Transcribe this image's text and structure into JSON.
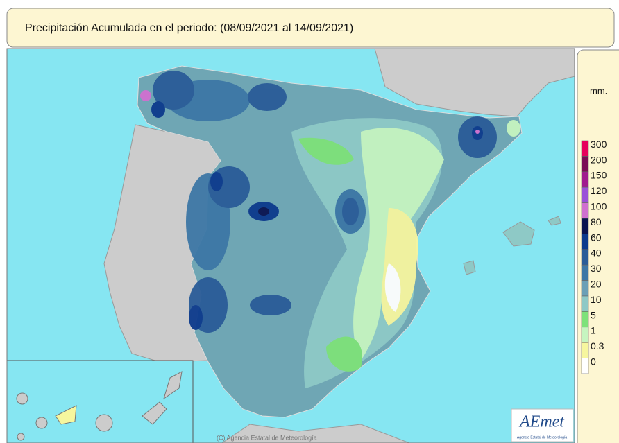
{
  "header": {
    "title": "Precipitación Acumulada en el periodo:  (08/09/2021 al 14/09/2021)"
  },
  "legend": {
    "unit": "mm.",
    "items": [
      {
        "label": "300",
        "color": "#e6005c"
      },
      {
        "label": "200",
        "color": "#7a0a55"
      },
      {
        "label": "150",
        "color": "#a01a8e"
      },
      {
        "label": "120",
        "color": "#9a50d8"
      },
      {
        "label": "100",
        "color": "#d070d0"
      },
      {
        "label": "80",
        "color": "#0a1450"
      },
      {
        "label": "60",
        "color": "#0c3a8c"
      },
      {
        "label": "40",
        "color": "#2a5c98"
      },
      {
        "label": "30",
        "color": "#3d77a6"
      },
      {
        "label": "20",
        "color": "#6b9fb6"
      },
      {
        "label": "10",
        "color": "#8ec9c6"
      },
      {
        "label": "5",
        "color": "#7ee27a"
      },
      {
        "label": "1",
        "color": "#c6f5c0"
      },
      {
        "label": "0.3",
        "color": "#f6f69e"
      },
      {
        "label": "0",
        "color": "#ffffff"
      }
    ]
  },
  "credits": "(C) Agencia Estatal de Meteorología",
  "logo": {
    "name": "AEmet",
    "subtitle": "Agencia Estatal de Meteorología"
  }
}
